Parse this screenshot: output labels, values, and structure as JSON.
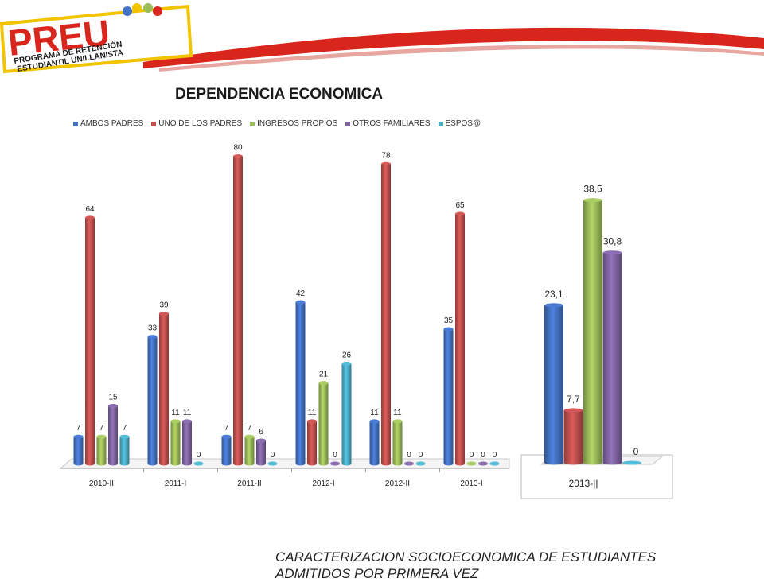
{
  "logo": {
    "brand": "PREU",
    "subtitle_line1": "PROGRAMA DE RETENCIÓN",
    "subtitle_line2": "ESTUDIANTIL UNILLANISTA"
  },
  "colors": {
    "ambos_padres": "#4472c4",
    "uno_de_los_padres": "#c0504d",
    "ingresos_propios": "#9bbb59",
    "otros_familiares": "#8064a2",
    "espos": "#4bacc6",
    "header_red": "#d9261c"
  },
  "chart_data": [
    {
      "type": "bar",
      "title": "DEPENDENCIA ECONOMICA",
      "legend_position": "top",
      "categories": [
        "2010-II",
        "2011-I",
        "2011-II",
        "2012-I",
        "2012-II",
        "2013-I"
      ],
      "series": [
        {
          "name": "AMBOS PADRES",
          "values": [
            7,
            33,
            7,
            42,
            11,
            35
          ]
        },
        {
          "name": "UNO DE LOS PADRES",
          "values": [
            64,
            39,
            80,
            11,
            78,
            65
          ]
        },
        {
          "name": "INGRESOS PROPIOS",
          "values": [
            7,
            11,
            7,
            21,
            11,
            0
          ]
        },
        {
          "name": "OTROS FAMILIARES",
          "values": [
            15,
            11,
            6,
            0,
            0,
            0
          ]
        },
        {
          "name": "ESPOS@",
          "values": [
            7,
            0,
            0,
            26,
            0,
            0
          ]
        }
      ],
      "ylim": [
        0,
        80
      ]
    },
    {
      "type": "bar",
      "categories": [
        "2013-||"
      ],
      "series": [
        {
          "name": "AMBOS PADRES",
          "values": [
            23.1
          ]
        },
        {
          "name": "UNO DE LOS PADRES",
          "values": [
            7.7
          ]
        },
        {
          "name": "INGRESOS PROPIOS",
          "values": [
            38.5
          ]
        },
        {
          "name": "OTROS FAMILIARES",
          "values": [
            30.8
          ]
        },
        {
          "name": "ESPOS@",
          "values": [
            0
          ]
        }
      ],
      "value_labels": [
        "23,1",
        "7,7",
        "38,5",
        "30,8",
        "0"
      ],
      "ylim": [
        0,
        38.5
      ]
    }
  ],
  "footer": {
    "line1": "CARACTERIZACION SOCIOECONOMICA DE ESTUDIANTES",
    "line2": "ADMITIDOS POR PRIMERA VEZ"
  }
}
